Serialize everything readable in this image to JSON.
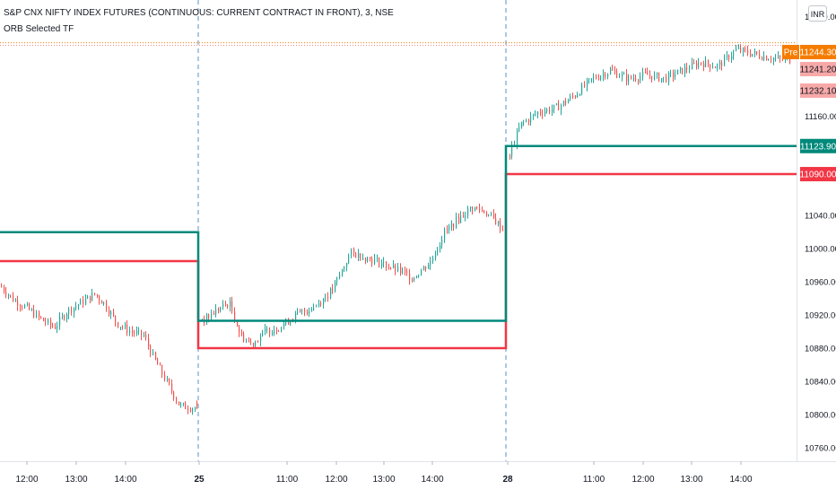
{
  "legend": {
    "symbol": "S&P CNX NIFTY INDEX FUTURES (CONTINUOUS: CURRENT CONTRACT IN FRONT), 3, NSE",
    "indicator": "ORB Selected TF"
  },
  "currency_button": "INR",
  "colors": {
    "up": "#26a69a",
    "down": "#ef5350",
    "orb_high": "#00897b",
    "orb_low": "#f23645",
    "pre_line": "#f57c00",
    "session_divider": "#5b8fc7",
    "axis_text": "#131722"
  },
  "chart_data": {
    "type": "candlestick",
    "title": "S&P CNX NIFTY INDEX FUTURES (CONTINUOUS: CURRENT CONTRACT IN FRONT), 3, NSE",
    "indicator": "ORB Selected TF",
    "y_range": [
      10750,
      11285
    ],
    "y_ticks": [
      "11280.00",
      "11160.00",
      "11123.90",
      "11090.00",
      "11040.00",
      "11000.00",
      "10960.00",
      "10920.00",
      "10880.00",
      "10840.00",
      "10800.00",
      "10760.00"
    ],
    "y_tick_values": [
      11280,
      11160,
      11040,
      11000,
      10960,
      10920,
      10880,
      10840,
      10800,
      10760
    ],
    "x_ticks": [
      "12:00",
      "13:00",
      "14:00",
      "25",
      "11:00",
      "12:00",
      "13:00",
      "14:00",
      "28",
      "11:00",
      "12:00",
      "13:00",
      "14:00"
    ],
    "x_tick_bold": [
      false,
      false,
      false,
      true,
      false,
      false,
      false,
      false,
      true,
      false,
      false,
      false,
      false
    ],
    "sessions": [
      {
        "start": "12:00 (prior day)",
        "end": "close",
        "orb_high": 11020,
        "orb_low": 10985
      },
      {
        "start": "25",
        "orb_high": 10913,
        "orb_low": 10880
      },
      {
        "start": "28",
        "orb_high": 11123.9,
        "orb_low": 11090.0
      }
    ],
    "price_labels": [
      {
        "label": "Pre",
        "value": "11244.30",
        "kind": "pre"
      },
      {
        "value": "11241.20",
        "kind": "last"
      },
      {
        "value": "11232.10",
        "kind": "prev"
      },
      {
        "value": "11123.90",
        "kind": "orb_high"
      },
      {
        "value": "11090.00",
        "kind": "orb_low"
      }
    ],
    "pre_market_level": 11244.3,
    "price_path": [
      [
        0,
        10955
      ],
      [
        15,
        10938
      ],
      [
        30,
        10928
      ],
      [
        45,
        10915
      ],
      [
        60,
        10905
      ],
      [
        75,
        10925
      ],
      [
        90,
        10935
      ],
      [
        105,
        10945
      ],
      [
        115,
        10935
      ],
      [
        130,
        10910
      ],
      [
        145,
        10900
      ],
      [
        160,
        10895
      ],
      [
        170,
        10870
      ],
      [
        180,
        10850
      ],
      [
        190,
        10830
      ],
      [
        200,
        10810
      ],
      [
        218,
        10808
      ],
      [
        225,
        10912
      ],
      [
        240,
        10925
      ],
      [
        255,
        10935
      ],
      [
        268,
        10895
      ],
      [
        280,
        10885
      ],
      [
        295,
        10900
      ],
      [
        310,
        10905
      ],
      [
        330,
        10920
      ],
      [
        350,
        10930
      ],
      [
        370,
        10950
      ],
      [
        390,
        10995
      ],
      [
        405,
        10990
      ],
      [
        420,
        10985
      ],
      [
        440,
        10975
      ],
      [
        460,
        10965
      ],
      [
        480,
        10985
      ],
      [
        495,
        11020
      ],
      [
        510,
        11035
      ],
      [
        525,
        11050
      ],
      [
        540,
        11045
      ],
      [
        555,
        11030
      ],
      [
        562,
        11020
      ],
      [
        566,
        11110
      ],
      [
        580,
        11150
      ],
      [
        600,
        11165
      ],
      [
        620,
        11170
      ],
      [
        640,
        11185
      ],
      [
        660,
        11205
      ],
      [
        680,
        11215
      ],
      [
        700,
        11205
      ],
      [
        720,
        11210
      ],
      [
        740,
        11205
      ],
      [
        760,
        11215
      ],
      [
        780,
        11225
      ],
      [
        800,
        11220
      ],
      [
        820,
        11240
      ],
      [
        840,
        11235
      ],
      [
        860,
        11230
      ],
      [
        878,
        11228
      ]
    ]
  }
}
